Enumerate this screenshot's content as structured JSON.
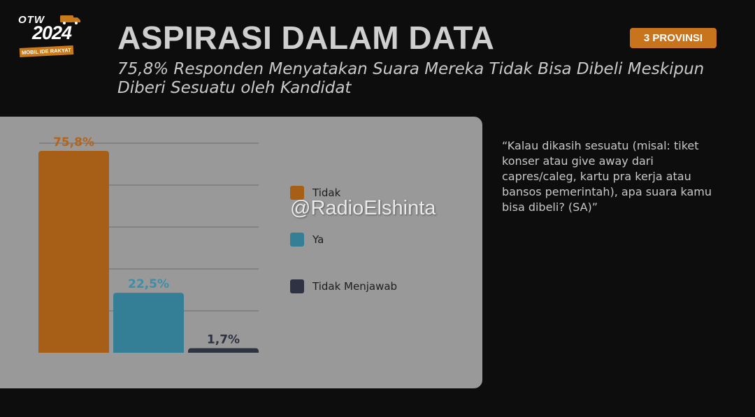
{
  "logo": {
    "top_text": "OTW",
    "year": "2024",
    "tag": "MOBIL IDE RAKYAT"
  },
  "header": {
    "title": "ASPIRASI DALAM DATA",
    "subtitle": "75,8% Responden Menyatakan Suara Mereka Tidak Bisa Dibeli Meskipun Diberi Sesuatu oleh Kandidat",
    "badge": "3 PROVINSI"
  },
  "colors": {
    "background": "#0d0d0d",
    "panel": "#999999",
    "accent": "#c8741c",
    "tidak": "#a75f18",
    "ya": "#357f96",
    "tidak_menjawab": "#2f3242"
  },
  "chart_data": {
    "type": "bar",
    "categories": [
      "Tidak",
      "Ya",
      "Tidak Menjawab"
    ],
    "values": [
      75.8,
      22.5,
      1.7
    ],
    "value_labels": [
      "75,8%",
      "22,5%",
      "1,7%"
    ],
    "label_colors": [
      "#b5651b",
      "#3d8ea6",
      "#2e3140"
    ],
    "ylim": [
      0,
      75.8
    ],
    "grid": true,
    "legend_position": "right"
  },
  "legend": [
    {
      "label": "Tidak"
    },
    {
      "label": "Ya"
    },
    {
      "label": "Tidak Menjawab"
    }
  ],
  "watermark": "@RadioElshinta",
  "quote": "“Kalau dikasih sesuatu (misal: tiket konser atau give away dari capres/caleg, kartu pra kerja atau bansos pemerintah), apa suara kamu bisa dibeli? (SA)”"
}
